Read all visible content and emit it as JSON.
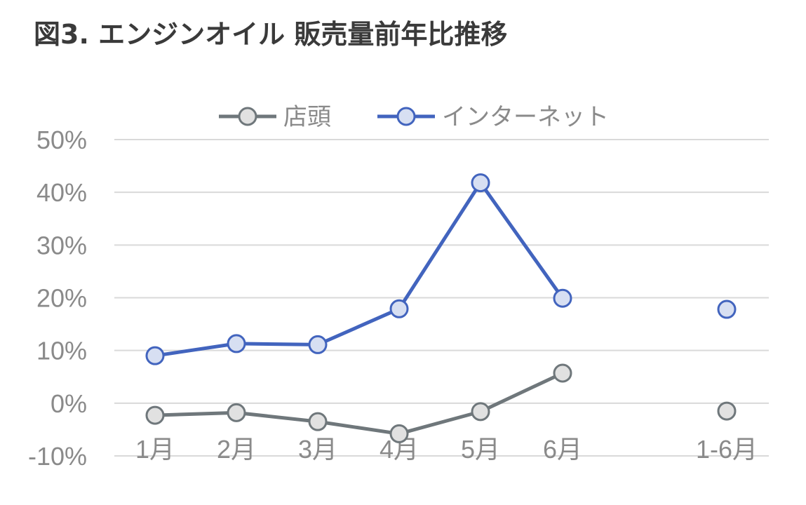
{
  "title": "図3. エンジンオイル 販売量前年比推移",
  "chart_data": {
    "type": "line",
    "title": "図3. エンジンオイル 販売量前年比推移",
    "categories": [
      "1月",
      "2月",
      "3月",
      "4月",
      "5月",
      "6月",
      "1-6月"
    ],
    "yticks": [
      "50%",
      "40%",
      "30%",
      "20%",
      "10%",
      "0%",
      "-10%"
    ],
    "ylim": [
      -10,
      50
    ],
    "grid": true,
    "legend_position": "top",
    "series": [
      {
        "name": "店頭",
        "color": "#6f777b",
        "marker_fill": "#e1e1e1",
        "values": [
          -2.3,
          -1.8,
          -3.5,
          -5.8,
          -1.6,
          5.7,
          -1.5
        ]
      },
      {
        "name": "インターネット",
        "color": "#4264be",
        "marker_fill": "#d7dff2",
        "values": [
          9.0,
          11.3,
          11.1,
          17.9,
          41.8,
          19.9,
          17.8
        ]
      }
    ]
  }
}
